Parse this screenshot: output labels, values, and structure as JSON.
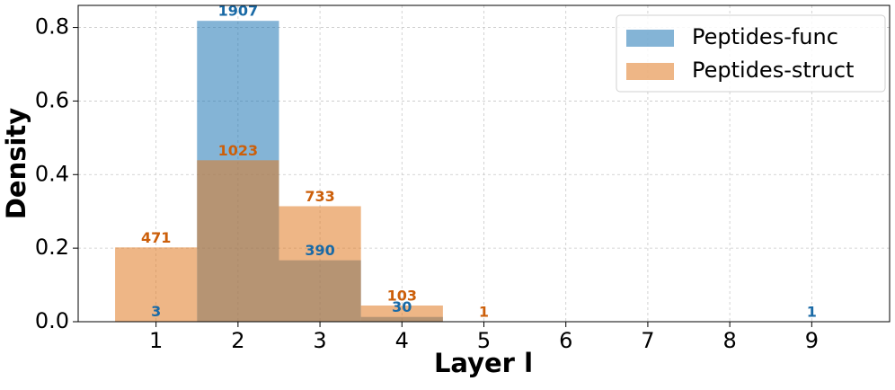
{
  "chart_data": {
    "type": "histogram",
    "xlabel": "Layer l",
    "ylabel": "Density",
    "bins": [
      0.5,
      1.5,
      2.5,
      3.5,
      4.5,
      5.5,
      6.5,
      7.5,
      8.5,
      9.5
    ],
    "series": [
      {
        "name": "Peptides-func",
        "color": "#1f77b4",
        "label_color": "#1a6aa6",
        "values": [
          0.0013,
          0.818,
          0.167,
          0.0129,
          0,
          0,
          0,
          0,
          0.0004
        ],
        "counts": [
          3,
          1907,
          390,
          30,
          null,
          null,
          null,
          null,
          1
        ]
      },
      {
        "name": "Peptides-struct",
        "color": "#e07a22",
        "label_color": "#cc5f0a",
        "values": [
          0.202,
          0.439,
          0.314,
          0.044,
          0.0004,
          0,
          0,
          0,
          0
        ],
        "counts": [
          471,
          1023,
          733,
          103,
          1,
          null,
          null,
          null,
          null
        ]
      }
    ],
    "xlim": [
      0.05,
      9.95
    ],
    "ylim": [
      0,
      0.86
    ],
    "xticks": [
      1,
      2,
      3,
      4,
      5,
      6,
      7,
      8,
      9
    ],
    "yticks": [
      {
        "value": 0,
        "label": "0.0"
      },
      0.2,
      0.4,
      0.6,
      0.8
    ],
    "grid": true,
    "legend": "upper right"
  }
}
